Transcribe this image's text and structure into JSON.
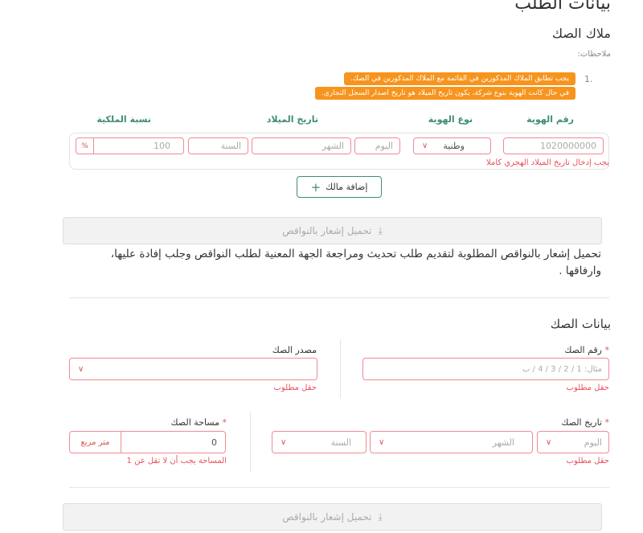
{
  "page_title": "بيانات الطلب",
  "owners": {
    "title": "ملاك الصك",
    "notes_label": "ملاحظات:",
    "note_number": "1.",
    "notes": [
      "يجب تطابق الملاك المذكورين في القائمة مع الملاك المذكورين في الصك.",
      "في حال كانت الهوية بنوع شركة، يكون تاريخ الميلاد هو تاريخ اصدار السجل التجاري."
    ],
    "columns": {
      "id_number": "رقم الهوية",
      "id_type": "نوع الهوية",
      "birth_date": "تاريخ الميلاد",
      "ownership": "نسبة الملكية"
    },
    "row": {
      "id_number": "1020000000",
      "id_type": "وطنية",
      "day_placeholder": "اليوم",
      "month_placeholder": "الشهر",
      "year_placeholder": "السنة",
      "ownership": "100",
      "percent": "%"
    },
    "row_error": "يجب إدخال تاريخ الميلاد الهجري كاملا",
    "add_owner": "إضافة مالك"
  },
  "download_label": "تحميل إشعار بالنواقص",
  "download_description": "تحميل إشعار بالنواقص المطلوبة لتقديم طلب تحديث ومراجعة الجهة المعنية لطلب النواقص وجلب إفادة عليها، وارفاقها .",
  "deed": {
    "title": "بيانات الصك",
    "deed_number_label": "رقم الصك",
    "deed_number_placeholder": "مثال: 1 / 2 / 3 / 4 / ب",
    "deed_source_label": "مصدر الصك",
    "deed_date_label": "تاريخ الصك",
    "day_placeholder": "اليوم",
    "month_placeholder": "الشهر",
    "year_placeholder": "السنة",
    "area_label": "مساحة الصك",
    "area_value": "0",
    "area_unit": "متر مربع",
    "required_error": "حقل مطلوب",
    "area_error": "المساحة يجب أن لا تقل عن 1"
  },
  "colors": {
    "accent": "#3f8c72",
    "error": "#e8505b",
    "note": "#f7941d"
  }
}
